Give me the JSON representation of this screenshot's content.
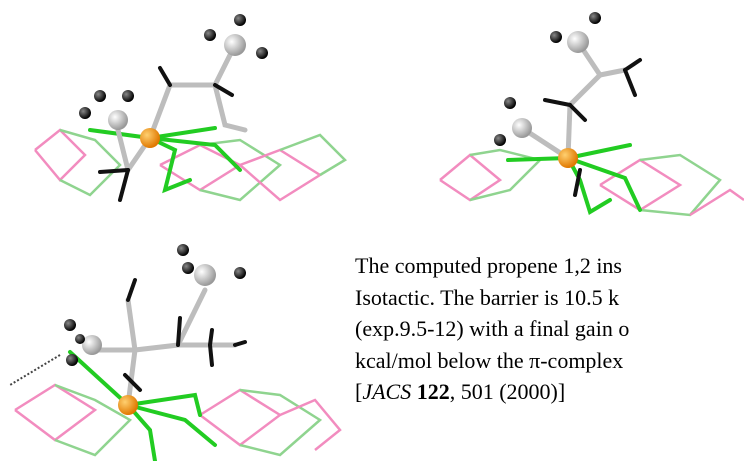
{
  "caption": {
    "lines": [
      "The computed propene 1,2 ins",
      "Isotactic. The barrier is 10.5 k",
      "(exp.9.5-12) with a final gain o",
      "kcal/mol below the π-complex"
    ],
    "citation": {
      "open": "[",
      "journal": "JACS",
      "volume": "122",
      "rest": ", 501 (2000)]"
    }
  }
}
